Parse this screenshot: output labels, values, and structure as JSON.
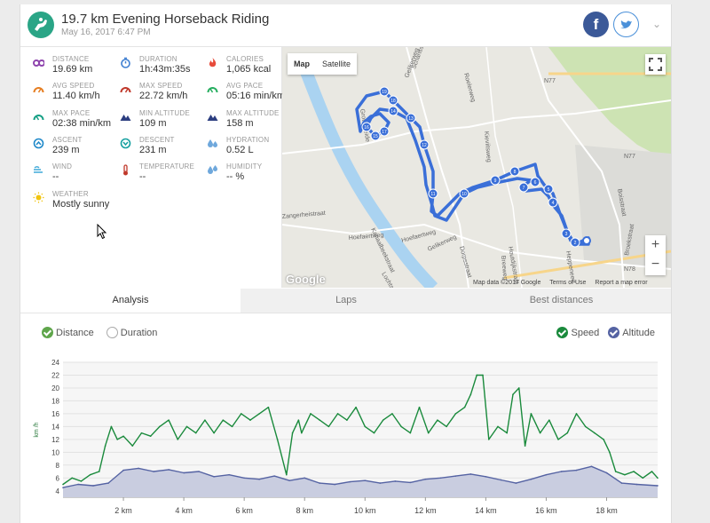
{
  "header": {
    "title": "19.7 km Evening Horseback Riding",
    "date": "May 16, 2017 6:47 PM",
    "facebook_label": "f"
  },
  "stats": [
    {
      "label": "DISTANCE",
      "value": "19.69 km",
      "icon": "distance-icon",
      "color": "#8e44ad"
    },
    {
      "label": "DURATION",
      "value": "1h:43m:35s",
      "icon": "stopwatch-icon",
      "color": "#3f7fd1"
    },
    {
      "label": "CALORIES",
      "value": "1,065 kcal",
      "icon": "flame-icon",
      "color": "#e74c3c"
    },
    {
      "label": "AVG SPEED",
      "value": "11.40 km/h",
      "icon": "speedometer-icon",
      "color": "#e67e22"
    },
    {
      "label": "MAX SPEED",
      "value": "22.72 km/h",
      "icon": "speedometer-icon",
      "color": "#c0392b"
    },
    {
      "label": "AVG PACE",
      "value": "05:16 min/km",
      "icon": "pace-icon",
      "color": "#27ae60"
    },
    {
      "label": "MAX PACE",
      "value": "02:38 min/km",
      "icon": "pace-icon",
      "color": "#16a085"
    },
    {
      "label": "MIN ALTITUDE",
      "value": "109 m",
      "icon": "mountain-icon",
      "color": "#2c3e80"
    },
    {
      "label": "MAX ALTITUDE",
      "value": "158 m",
      "icon": "mountain-icon",
      "color": "#2c3e80"
    },
    {
      "label": "ASCENT",
      "value": "239 m",
      "icon": "ascent-icon",
      "color": "#1e88c9"
    },
    {
      "label": "DESCENT",
      "value": "231 m",
      "icon": "descent-icon",
      "color": "#16a0a0"
    },
    {
      "label": "HYDRATION",
      "value": "0.52 L",
      "icon": "water-drops-icon",
      "color": "#6fa8dc"
    },
    {
      "label": "WIND",
      "value": "--",
      "icon": "wind-icon",
      "color": "#3fa9d8"
    },
    {
      "label": "TEMPERATURE",
      "value": "--",
      "icon": "thermometer-icon",
      "color": "#c0392b"
    },
    {
      "label": "HUMIDITY",
      "value": "-- %",
      "icon": "humidity-icon",
      "color": "#6fa8dc"
    },
    {
      "label": "WEATHER",
      "value": "Mostly sunny",
      "icon": "sun-icon",
      "color": "#f1c40f"
    }
  ],
  "map": {
    "type_buttons": [
      "Map",
      "Satellite"
    ],
    "selected_type": "Map",
    "zoom_in": "+",
    "zoom_out": "−",
    "logo": "Google",
    "attribution": [
      "Map data ©2017 Google",
      "Terms of Use",
      "Report a map error"
    ],
    "road_labels": [
      "Schansstraat",
      "Roelerweg",
      "Kieviitsweg",
      "Houtdijkstraat",
      "Kanaalbeekstraat",
      "Zangerheistraat",
      "Hoefaertweg",
      "Hoefaertweg",
      "Dorpsstraat",
      "Gelikerweg",
      "Gelikerweg",
      "Lochtstraat",
      "Grote Heide",
      "Breeweg",
      "Broekstraat",
      "Boisstraat",
      "Heppeneert",
      "N77",
      "N77",
      "N78"
    ],
    "markers": [
      "2",
      "3",
      "4",
      "5",
      "6",
      "7",
      "8",
      "9",
      "10",
      "11",
      "12",
      "13",
      "14",
      "15",
      "16",
      "17",
      "18",
      "19"
    ],
    "route_color": "#3a6fd8"
  },
  "tabs": [
    {
      "label": "Analysis",
      "active": true
    },
    {
      "label": "Laps",
      "active": false
    },
    {
      "label": "Best distances",
      "active": false
    }
  ],
  "legend_left": [
    {
      "label": "Distance",
      "checked": true
    },
    {
      "label": "Duration",
      "checked": false
    }
  ],
  "legend_right": [
    {
      "label": "Speed",
      "checked": true
    },
    {
      "label": "Altitude",
      "checked": true
    }
  ],
  "chart_data": {
    "type": "line",
    "ylabel": "km /h",
    "xlabel": "",
    "xlim": [
      0,
      19.69
    ],
    "ylim": [
      3,
      24
    ],
    "yticks": [
      4,
      6,
      8,
      10,
      12,
      14,
      16,
      18,
      20,
      22,
      24
    ],
    "xticks": [
      "2 km",
      "4 km",
      "6 km",
      "8 km",
      "10 km",
      "12 km",
      "14 km",
      "16 km",
      "18 km"
    ],
    "xtick_values": [
      2,
      4,
      6,
      8,
      10,
      12,
      14,
      16,
      18
    ],
    "series": [
      {
        "name": "Speed",
        "color": "#1a8a3c",
        "x": [
          0,
          0.3,
          0.6,
          0.9,
          1.2,
          1.4,
          1.6,
          1.8,
          2.0,
          2.3,
          2.6,
          2.9,
          3.2,
          3.5,
          3.8,
          4.1,
          4.4,
          4.7,
          5.0,
          5.3,
          5.6,
          5.9,
          6.2,
          6.5,
          6.8,
          7.1,
          7.4,
          7.6,
          7.7,
          7.8,
          7.9,
          8.2,
          8.5,
          8.8,
          9.1,
          9.4,
          9.7,
          10.0,
          10.3,
          10.6,
          10.9,
          11.2,
          11.5,
          11.8,
          12.1,
          12.4,
          12.7,
          13.0,
          13.3,
          13.5,
          13.7,
          13.9,
          14.1,
          14.4,
          14.7,
          14.9,
          15.1,
          15.3,
          15.5,
          15.8,
          16.1,
          16.4,
          16.7,
          17.0,
          17.3,
          17.6,
          17.9,
          18.1,
          18.3,
          18.6,
          18.9,
          19.2,
          19.5,
          19.69
        ],
        "values": [
          5,
          6,
          5.5,
          6.5,
          7,
          11,
          14,
          12,
          12.5,
          11,
          13,
          12.5,
          14,
          15,
          12,
          14,
          13,
          15,
          13,
          15,
          14,
          16,
          15,
          16,
          17,
          12,
          6.5,
          13,
          14,
          15,
          13,
          16,
          15,
          14,
          16,
          15,
          17,
          14,
          13,
          15,
          16,
          14,
          13,
          17,
          13,
          15,
          14,
          16,
          17,
          19,
          22,
          22,
          12,
          14,
          13,
          19,
          20,
          11,
          16,
          13,
          15,
          12,
          13,
          16,
          14,
          13,
          12,
          10,
          7,
          6.5,
          7,
          6,
          7,
          6
        ]
      },
      {
        "name": "Altitude",
        "color": "#5563a3",
        "fill": "#c9cde0",
        "x": [
          0,
          0.5,
          1.0,
          1.5,
          2.0,
          2.5,
          3.0,
          3.5,
          4.0,
          4.5,
          5.0,
          5.5,
          6.0,
          6.5,
          7.0,
          7.5,
          8.0,
          8.5,
          9.0,
          9.5,
          10.0,
          10.5,
          11.0,
          11.5,
          12.0,
          12.5,
          13.0,
          13.5,
          14.0,
          14.5,
          15.0,
          15.5,
          16.0,
          16.5,
          17.0,
          17.5,
          18.0,
          18.5,
          19.0,
          19.69
        ],
        "values": [
          4.5,
          5,
          4.8,
          5.2,
          7.2,
          7.5,
          7,
          7.3,
          6.8,
          7,
          6.2,
          6.5,
          6,
          5.8,
          6.3,
          5.6,
          6,
          5.2,
          5,
          5.4,
          5.6,
          5.2,
          5.5,
          5.3,
          5.8,
          6,
          6.3,
          6.6,
          6.2,
          5.7,
          5.2,
          5.8,
          6.5,
          7,
          7.2,
          7.8,
          6.8,
          5.2,
          5,
          4.8
        ]
      }
    ]
  }
}
